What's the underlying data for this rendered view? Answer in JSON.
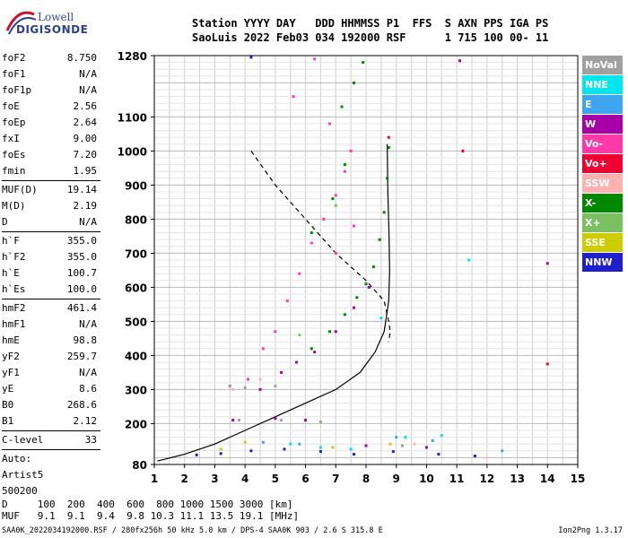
{
  "logo": {
    "line1": "Lowell",
    "line2": "DIGISONDE"
  },
  "header": {
    "row1": "Station YYYY DAY   DDD HHMMSS P1  FFS  S AXN PPS IGA PS",
    "row2": "SaoLuis 2022 Feb03 034 192000 RSF      1 715 100 00- 11"
  },
  "params": [
    [
      {
        "label": "foF2",
        "value": "8.750"
      },
      {
        "label": "foF1",
        "value": "N/A"
      },
      {
        "label": "foF1p",
        "value": "N/A"
      },
      {
        "label": "foE",
        "value": "2.56"
      },
      {
        "label": "foEp",
        "value": "2.64"
      },
      {
        "label": "fxI",
        "value": "9.00"
      },
      {
        "label": "foEs",
        "value": "7.20"
      },
      {
        "label": "fmin",
        "value": "1.95"
      }
    ],
    [
      {
        "label": "MUF(D)",
        "value": "19.14"
      },
      {
        "label": "M(D)",
        "value": "2.19"
      },
      {
        "label": "D",
        "value": "N/A"
      }
    ],
    [
      {
        "label": "h`F",
        "value": "355.0"
      },
      {
        "label": "h`F2",
        "value": "355.0"
      },
      {
        "label": "h`E",
        "value": "100.7"
      },
      {
        "label": "h`Es",
        "value": "100.0"
      }
    ],
    [
      {
        "label": "hmF2",
        "value": "461.4"
      },
      {
        "label": "hmF1",
        "value": "N/A"
      },
      {
        "label": "hmE",
        "value": "98.8"
      },
      {
        "label": "yF2",
        "value": "259.7"
      },
      {
        "label": "yF1",
        "value": "N/A"
      },
      {
        "label": "yE",
        "value": "8.6"
      },
      {
        "label": "B0",
        "value": "268.6"
      },
      {
        "label": "B1",
        "value": "2.12"
      }
    ],
    [
      {
        "label": "C-level",
        "value": "33"
      }
    ]
  ],
  "auto": {
    "line1": "Auto:",
    "line2": "Artist5",
    "line3": "500200"
  },
  "muf_table": {
    "row1": "D     100  200  400  600  800 1000 1500 3000 [km]",
    "row2": "MUF   9.1  9.1  9.4  9.8 10.3 11.1 13.5 19.1 [MHz]"
  },
  "footer": "SAA0K_2022034192000.RSF / 280fx256h 50 kHz 5.0 km / DPS-4 SAA0K 903 / 2.6 S 315.8 E",
  "version": "Ion2Png 1.3.17",
  "legend": [
    {
      "label": "NoVal",
      "color": "#a0a0a0"
    },
    {
      "label": "NNE",
      "color": "#00e5ee"
    },
    {
      "label": "E",
      "color": "#3da6ee"
    },
    {
      "label": "W",
      "color": "#a800a8"
    },
    {
      "label": "Vo-",
      "color": "#ff3aa8"
    },
    {
      "label": "Vo+",
      "color": "#ee0033"
    },
    {
      "label": "SSW",
      "color": "#ffb0b0"
    },
    {
      "label": "X-",
      "color": "#008800"
    },
    {
      "label": "X+",
      "color": "#7ac060"
    },
    {
      "label": "SSE",
      "color": "#cccc00"
    },
    {
      "label": "NNW",
      "color": "#1f1fcc"
    }
  ],
  "chart_data": {
    "type": "scatter",
    "xlim": [
      1,
      15
    ],
    "ylim": [
      80,
      1280
    ],
    "x_ticks": [
      1,
      2,
      3,
      4,
      5,
      6,
      7,
      8,
      9,
      10,
      11,
      12,
      13,
      14,
      15
    ],
    "y_ticks": [
      80,
      200,
      300,
      400,
      500,
      600,
      700,
      800,
      900,
      1000,
      1100,
      1280
    ],
    "grid": true,
    "series": [
      {
        "name": "X-",
        "color": "#008800",
        "points": [
          [
            6.2,
            420
          ],
          [
            6.8,
            470
          ],
          [
            7.3,
            520
          ],
          [
            7.7,
            570
          ],
          [
            8.0,
            610
          ],
          [
            8.25,
            660
          ],
          [
            8.45,
            740
          ],
          [
            8.6,
            820
          ],
          [
            8.7,
            920
          ],
          [
            8.75,
            1010
          ],
          [
            7.2,
            1130
          ],
          [
            7.6,
            1200
          ],
          [
            7.9,
            1260
          ],
          [
            6.2,
            760
          ],
          [
            6.9,
            860
          ],
          [
            7.3,
            960
          ]
        ]
      },
      {
        "name": "Vo-",
        "color": "#ff3aa8",
        "points": [
          [
            5.0,
            470
          ],
          [
            5.4,
            560
          ],
          [
            5.8,
            640
          ],
          [
            6.2,
            730
          ],
          [
            6.6,
            800
          ],
          [
            7.0,
            870
          ],
          [
            7.3,
            940
          ],
          [
            7.5,
            1000
          ],
          [
            6.3,
            1270
          ],
          [
            7.0,
            700
          ],
          [
            7.6,
            780
          ],
          [
            4.1,
            330
          ],
          [
            4.6,
            420
          ],
          [
            5.6,
            1160
          ],
          [
            6.8,
            1080
          ]
        ]
      },
      {
        "name": "W",
        "color": "#a800a8",
        "points": [
          [
            5.2,
            350
          ],
          [
            5.7,
            380
          ],
          [
            6.3,
            410
          ],
          [
            7.0,
            470
          ],
          [
            7.6,
            540
          ],
          [
            8.1,
            600
          ],
          [
            3.5,
            310
          ],
          [
            4.5,
            300
          ],
          [
            3.6,
            210
          ],
          [
            5.0,
            215
          ],
          [
            6.0,
            210
          ],
          [
            8.0,
            135
          ],
          [
            10.0,
            130
          ],
          [
            11.1,
            1265
          ],
          [
            14.0,
            670
          ]
        ]
      },
      {
        "name": "NNE",
        "color": "#00e5ee",
        "points": [
          [
            5.5,
            140
          ],
          [
            6.5,
            130
          ],
          [
            7.5,
            125
          ],
          [
            9.3,
            160
          ],
          [
            10.5,
            165
          ],
          [
            11.4,
            680
          ],
          [
            8.5,
            510
          ]
        ]
      },
      {
        "name": "E",
        "color": "#3da6ee",
        "points": [
          [
            4.6,
            145
          ],
          [
            5.8,
            140
          ],
          [
            9.0,
            160
          ],
          [
            10.2,
            150
          ],
          [
            12.5,
            120
          ]
        ]
      },
      {
        "name": "Vo+",
        "color": "#ee0033",
        "points": [
          [
            8.75,
            1040
          ],
          [
            14.0,
            375
          ],
          [
            11.2,
            1000
          ]
        ]
      },
      {
        "name": "SSW",
        "color": "#ffb0b0",
        "points": [
          [
            3.6,
            300
          ],
          [
            4.5,
            330
          ],
          [
            9.6,
            140
          ]
        ]
      },
      {
        "name": "X+",
        "color": "#7ac060",
        "points": [
          [
            5.8,
            460
          ],
          [
            7.0,
            840
          ],
          [
            6.5,
            205
          ]
        ]
      },
      {
        "name": "SSE",
        "color": "#cccc00",
        "points": [
          [
            4.0,
            145
          ],
          [
            6.9,
            130
          ],
          [
            8.8,
            140
          ],
          [
            3.2,
            125
          ]
        ]
      },
      {
        "name": "NNW",
        "color": "#1f1fcc",
        "points": [
          [
            2.4,
            108
          ],
          [
            3.2,
            112
          ],
          [
            4.2,
            120
          ],
          [
            5.3,
            125
          ],
          [
            6.5,
            118
          ],
          [
            7.6,
            110
          ],
          [
            8.9,
            118
          ],
          [
            10.4,
            110
          ],
          [
            11.6,
            105
          ],
          [
            4.2,
            1275
          ]
        ]
      },
      {
        "name": "NoVal",
        "color": "#a0a0a0",
        "points": [
          [
            3.5,
            310
          ],
          [
            4.0,
            305
          ],
          [
            5.0,
            310
          ],
          [
            3.8,
            210
          ],
          [
            5.2,
            210
          ],
          [
            9.2,
            135
          ]
        ]
      }
    ],
    "curves": [
      {
        "style": "solid",
        "points": [
          [
            1.1,
            90
          ],
          [
            2.0,
            110
          ],
          [
            3.0,
            140
          ],
          [
            4.0,
            180
          ],
          [
            5.0,
            220
          ],
          [
            6.0,
            260
          ],
          [
            7.0,
            300
          ],
          [
            7.8,
            350
          ],
          [
            8.3,
            410
          ],
          [
            8.6,
            470
          ],
          [
            8.75,
            560
          ],
          [
            8.78,
            650
          ],
          [
            8.76,
            760
          ],
          [
            8.72,
            880
          ],
          [
            8.7,
            1020
          ]
        ]
      },
      {
        "style": "dashed",
        "points": [
          [
            4.2,
            1000
          ],
          [
            5.0,
            900
          ],
          [
            6.0,
            800
          ],
          [
            7.0,
            700
          ],
          [
            8.0,
            620
          ],
          [
            8.6,
            560
          ],
          [
            8.75,
            500
          ],
          [
            8.8,
            470
          ],
          [
            8.75,
            440
          ]
        ]
      }
    ]
  }
}
